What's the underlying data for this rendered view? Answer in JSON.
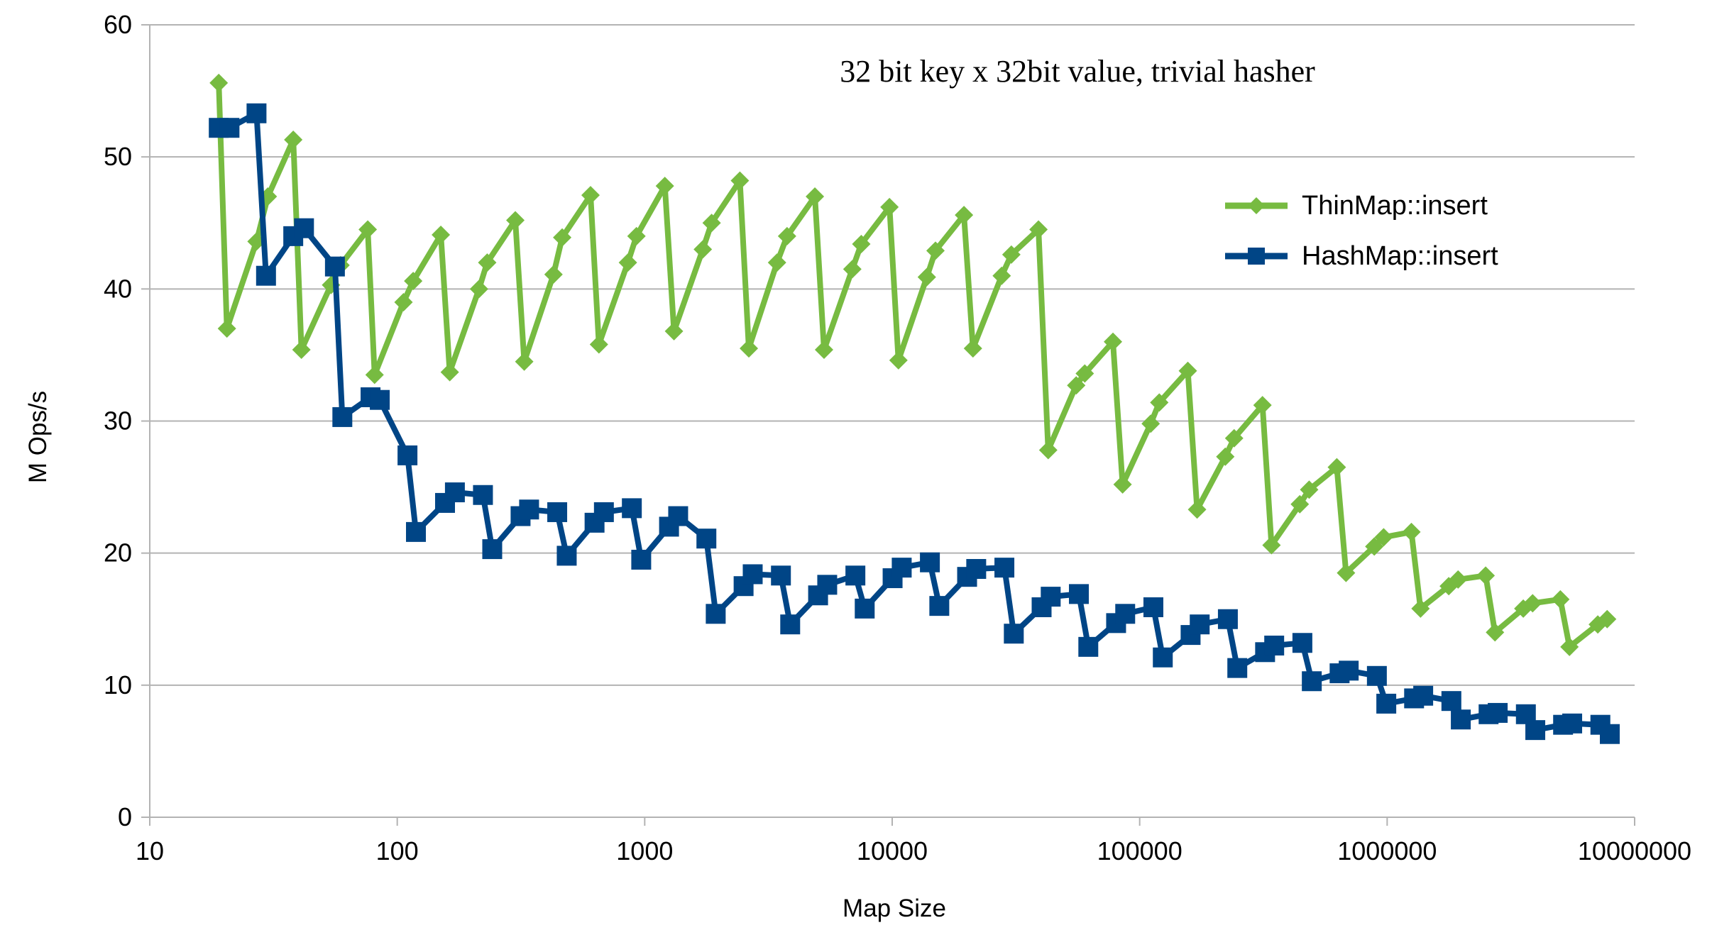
{
  "chart_data": {
    "type": "line",
    "title": "32 bit key x 32bit value, trivial hasher",
    "xlabel": "Map Size",
    "ylabel": "M Ops/s",
    "x_scale": "log",
    "xlim": [
      10,
      10000000
    ],
    "ylim": [
      0,
      60
    ],
    "x_ticks": [
      10,
      100,
      1000,
      10000,
      100000,
      1000000,
      10000000
    ],
    "x_tick_labels": [
      "10",
      "100",
      "1000",
      "10000",
      "100000",
      "1000000",
      "10000000"
    ],
    "y_ticks": [
      0,
      10,
      20,
      30,
      40,
      50,
      60
    ],
    "y_tick_labels": [
      "0",
      "10",
      "20",
      "30",
      "40",
      "50",
      "60"
    ],
    "grid": "horizontal",
    "legend_position": "right",
    "series": [
      {
        "name": "ThinMap::insert",
        "color": "#77bb41",
        "marker": "diamond",
        "points": [
          [
            19,
            55.6
          ],
          [
            20.5,
            37.0
          ],
          [
            27,
            43.6
          ],
          [
            30,
            47.0
          ],
          [
            38,
            51.3
          ],
          [
            41,
            35.4
          ],
          [
            54,
            40.3
          ],
          [
            59,
            41.8
          ],
          [
            76,
            44.5
          ],
          [
            81,
            33.5
          ],
          [
            106,
            39.0
          ],
          [
            116,
            40.6
          ],
          [
            150,
            44.1
          ],
          [
            163,
            33.7
          ],
          [
            214,
            40.0
          ],
          [
            231,
            42.0
          ],
          [
            300,
            45.2
          ],
          [
            326,
            34.5
          ],
          [
            428,
            41.1
          ],
          [
            464,
            43.9
          ],
          [
            604,
            47.1
          ],
          [
            653,
            35.8
          ],
          [
            855,
            42.0
          ],
          [
            926,
            44.0
          ],
          [
            1206,
            47.8
          ],
          [
            1313,
            36.8
          ],
          [
            1717,
            43.0
          ],
          [
            1864,
            45.0
          ],
          [
            2424,
            48.2
          ],
          [
            2635,
            35.5
          ],
          [
            3425,
            42.0
          ],
          [
            3760,
            44.0
          ],
          [
            4870,
            47.0
          ],
          [
            5304,
            35.4
          ],
          [
            6900,
            41.5
          ],
          [
            7500,
            43.4
          ],
          [
            9750,
            46.2
          ],
          [
            10600,
            34.6
          ],
          [
            13800,
            40.9
          ],
          [
            14960,
            42.9
          ],
          [
            19500,
            45.6
          ],
          [
            21200,
            35.5
          ],
          [
            27700,
            41.0
          ],
          [
            30300,
            42.6
          ],
          [
            39000,
            44.5
          ],
          [
            42700,
            27.8
          ],
          [
            55400,
            32.7
          ],
          [
            60000,
            33.6
          ],
          [
            78000,
            36.0
          ],
          [
            85300,
            25.2
          ],
          [
            110800,
            29.8
          ],
          [
            120000,
            31.4
          ],
          [
            156500,
            33.8
          ],
          [
            170600,
            23.3
          ],
          [
            221800,
            27.3
          ],
          [
            240800,
            28.7
          ],
          [
            313500,
            31.2
          ],
          [
            341000,
            20.6
          ],
          [
            443600,
            23.7
          ],
          [
            484000,
            24.8
          ],
          [
            626000,
            26.5
          ],
          [
            682000,
            18.5
          ],
          [
            887000,
            20.5
          ],
          [
            968000,
            21.2
          ],
          [
            1253000,
            21.6
          ],
          [
            1364000,
            15.8
          ],
          [
            1774000,
            17.5
          ],
          [
            1935000,
            18.0
          ],
          [
            2500000,
            18.3
          ],
          [
            2727000,
            14.0
          ],
          [
            3549000,
            15.8
          ],
          [
            3871000,
            16.2
          ],
          [
            5010000,
            16.5
          ],
          [
            5454000,
            12.9
          ],
          [
            7098000,
            14.6
          ],
          [
            7743000,
            15.0
          ]
        ]
      },
      {
        "name": "HashMap::insert",
        "color": "#004586",
        "marker": "square",
        "points": [
          [
            19,
            52.2
          ],
          [
            21,
            52.2
          ],
          [
            27,
            53.3
          ],
          [
            29.5,
            41.0
          ],
          [
            38,
            44.0
          ],
          [
            42,
            44.6
          ],
          [
            56,
            41.7
          ],
          [
            60,
            30.3
          ],
          [
            78,
            31.8
          ],
          [
            85,
            31.6
          ],
          [
            110,
            27.4
          ],
          [
            119,
            21.6
          ],
          [
            156,
            23.8
          ],
          [
            171,
            24.6
          ],
          [
            222,
            24.4
          ],
          [
            242,
            20.3
          ],
          [
            315,
            22.8
          ],
          [
            341,
            23.3
          ],
          [
            443,
            23.1
          ],
          [
            484,
            19.8
          ],
          [
            627,
            22.3
          ],
          [
            684,
            23.1
          ],
          [
            887,
            23.4
          ],
          [
            968,
            19.5
          ],
          [
            1254,
            22.0
          ],
          [
            1365,
            22.8
          ],
          [
            1775,
            21.1
          ],
          [
            1936,
            15.4
          ],
          [
            2509,
            17.5
          ],
          [
            2731,
            18.4
          ],
          [
            3551,
            18.3
          ],
          [
            3871,
            14.6
          ],
          [
            5018,
            16.8
          ],
          [
            5463,
            17.6
          ],
          [
            7100,
            18.3
          ],
          [
            7743,
            15.8
          ],
          [
            10037,
            18.1
          ],
          [
            10926,
            18.9
          ],
          [
            14200,
            19.3
          ],
          [
            15500,
            16.0
          ],
          [
            20075,
            18.2
          ],
          [
            21852,
            18.8
          ],
          [
            28400,
            18.9
          ],
          [
            31000,
            13.9
          ],
          [
            40150,
            15.9
          ],
          [
            43700,
            16.7
          ],
          [
            56800,
            16.9
          ],
          [
            62000,
            12.9
          ],
          [
            80300,
            14.7
          ],
          [
            87400,
            15.4
          ],
          [
            113600,
            15.9
          ],
          [
            124000,
            12.1
          ],
          [
            160600,
            13.8
          ],
          [
            174800,
            14.6
          ],
          [
            227200,
            15.0
          ],
          [
            248000,
            11.3
          ],
          [
            321200,
            12.5
          ],
          [
            349600,
            13.0
          ],
          [
            454400,
            13.2
          ],
          [
            496000,
            10.3
          ],
          [
            642400,
            10.9
          ],
          [
            699200,
            11.1
          ],
          [
            908800,
            10.7
          ],
          [
            992000,
            8.6
          ],
          [
            1284800,
            9.0
          ],
          [
            1398400,
            9.2
          ],
          [
            1817600,
            8.8
          ],
          [
            1984000,
            7.4
          ],
          [
            2569600,
            7.8
          ],
          [
            2796800,
            7.9
          ],
          [
            3635200,
            7.8
          ],
          [
            3968000,
            6.6
          ],
          [
            5139200,
            7.0
          ],
          [
            5593600,
            7.1
          ],
          [
            7270400,
            7.0
          ],
          [
            7936000,
            6.3
          ]
        ]
      }
    ]
  }
}
